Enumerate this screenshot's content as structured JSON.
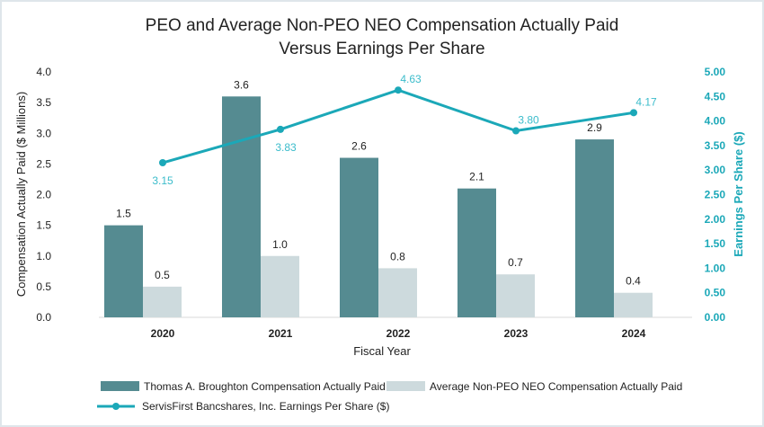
{
  "chart_data": {
    "type": "bar",
    "title": "PEO and Average Non-PEO NEO Compensation Actually Paid",
    "subtitle": "Versus Earnings Per Share",
    "xlabel": "Fiscal Year",
    "ylabel": "Compensation Actually Paid ($ Millions)",
    "y2label": "Earnings Per Share ($)",
    "categories": [
      "2020",
      "2021",
      "2022",
      "2023",
      "2024"
    ],
    "ylim": [
      0,
      4.0
    ],
    "y2lim": [
      0,
      5.0
    ],
    "yticks": [
      "0.0",
      "0.5",
      "1.0",
      "1.5",
      "2.0",
      "2.5",
      "3.0",
      "3.5",
      "4.0"
    ],
    "y2ticks": [
      "0.00",
      "0.50",
      "1.00",
      "1.50",
      "2.00",
      "2.50",
      "3.00",
      "3.50",
      "4.00",
      "4.50",
      "5.00"
    ],
    "grid": false,
    "legend_position": "bottom",
    "series": [
      {
        "name": "Thomas A. Broughton Compensation Actually Paid",
        "type": "bar",
        "axis": "left",
        "color": "#558b91",
        "values": [
          1.5,
          3.6,
          2.6,
          2.1,
          2.9
        ],
        "labels": [
          "1.5",
          "3.6",
          "2.6",
          "2.1",
          "2.9"
        ]
      },
      {
        "name": "Average Non-PEO NEO Compensation Actually Paid",
        "type": "bar",
        "axis": "left",
        "color": "#cddadd",
        "values": [
          0.5,
          1.0,
          0.8,
          0.7,
          0.4
        ],
        "labels": [
          "0.5",
          "1.0",
          "0.8",
          "0.7",
          "0.4"
        ]
      },
      {
        "name": "ServisFirst Bancshares, Inc. Earnings Per Share ($)",
        "type": "line",
        "axis": "right",
        "color": "#1ba8b8",
        "values": [
          3.15,
          3.83,
          4.63,
          3.8,
          4.17
        ],
        "labels": [
          "3.15",
          "3.83",
          "4.63",
          "3.80",
          "4.17"
        ]
      }
    ]
  }
}
